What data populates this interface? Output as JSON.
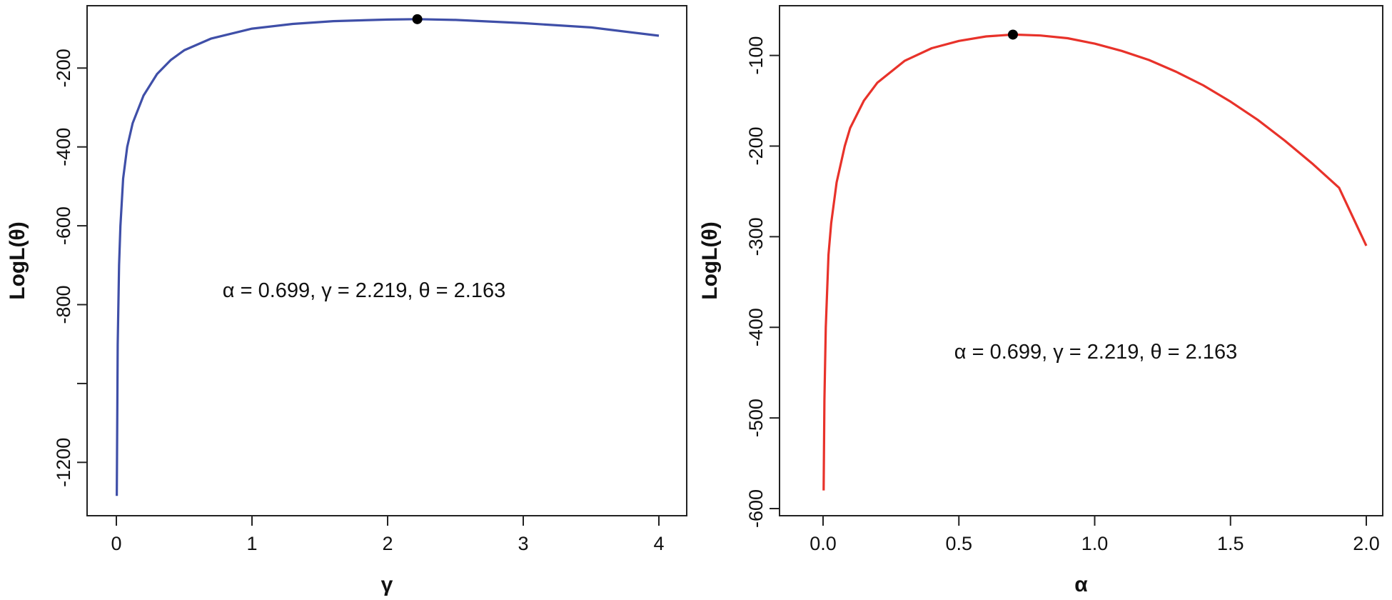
{
  "chart_data": [
    {
      "type": "line",
      "xlabel": "γ",
      "ylabel": "LogL(θ)",
      "annotation": "α = 0.699,  γ = 2.219,  θ = 2.163",
      "xlim": [
        0,
        4
      ],
      "ylim": [
        -1290,
        -60
      ],
      "x_ticks": [
        0,
        1,
        2,
        3,
        4
      ],
      "x_tick_labels": [
        "0",
        "1",
        "2",
        "3",
        "4"
      ],
      "y_ticks": [
        -1200,
        -1000,
        -800,
        -600,
        -400,
        -200
      ],
      "y_tick_labels": [
        "-1200",
        "",
        "-800",
        "-600",
        "-400",
        "-200"
      ],
      "grid": false,
      "series": [
        {
          "color": "#3f4fa8",
          "x": [
            0.003,
            0.01,
            0.02,
            0.03,
            0.05,
            0.08,
            0.12,
            0.2,
            0.3,
            0.4,
            0.5,
            0.7,
            1.0,
            1.3,
            1.6,
            2.0,
            2.219,
            2.5,
            3.0,
            3.5,
            4.0
          ],
          "y": [
            -1285,
            -900,
            -700,
            -600,
            -480,
            -400,
            -340,
            -270,
            -215,
            -180,
            -155,
            -125,
            -100,
            -88,
            -81,
            -77,
            -76,
            -78,
            -86,
            -97,
            -118
          ]
        }
      ],
      "max_point": {
        "x": 2.219,
        "y": -76
      }
    },
    {
      "type": "line",
      "xlabel": "α",
      "ylabel": "LogL(θ)",
      "annotation": "α = 0.699,  γ = 2.219,  θ = 2.163",
      "xlim": [
        0,
        2
      ],
      "ylim": [
        -600,
        -53
      ],
      "x_ticks": [
        0.0,
        0.5,
        1.0,
        1.5,
        2.0
      ],
      "x_tick_labels": [
        "0.0",
        "0.5",
        "1.0",
        "1.5",
        "2.0"
      ],
      "y_ticks": [
        -600,
        -500,
        -400,
        -300,
        -200,
        -100
      ],
      "y_tick_labels": [
        "-600",
        "-500",
        "-400",
        "-300",
        "-200",
        "-100"
      ],
      "grid": false,
      "series": [
        {
          "color": "#e8322a",
          "x": [
            0.002,
            0.005,
            0.01,
            0.02,
            0.03,
            0.05,
            0.08,
            0.1,
            0.15,
            0.2,
            0.3,
            0.4,
            0.5,
            0.6,
            0.699,
            0.8,
            0.9,
            1.0,
            1.1,
            1.2,
            1.3,
            1.4,
            1.5,
            1.6,
            1.7,
            1.8,
            1.9,
            2.0
          ],
          "y": [
            -580,
            -480,
            -400,
            -320,
            -285,
            -240,
            -200,
            -180,
            -150,
            -130,
            -106,
            -92,
            -84,
            -79,
            -77,
            -78,
            -81,
            -87,
            -95,
            -105,
            -118,
            -133,
            -151,
            -171,
            -194,
            -219,
            -246,
            -310
          ]
        }
      ],
      "max_point": {
        "x": 0.699,
        "y": -77
      }
    }
  ]
}
